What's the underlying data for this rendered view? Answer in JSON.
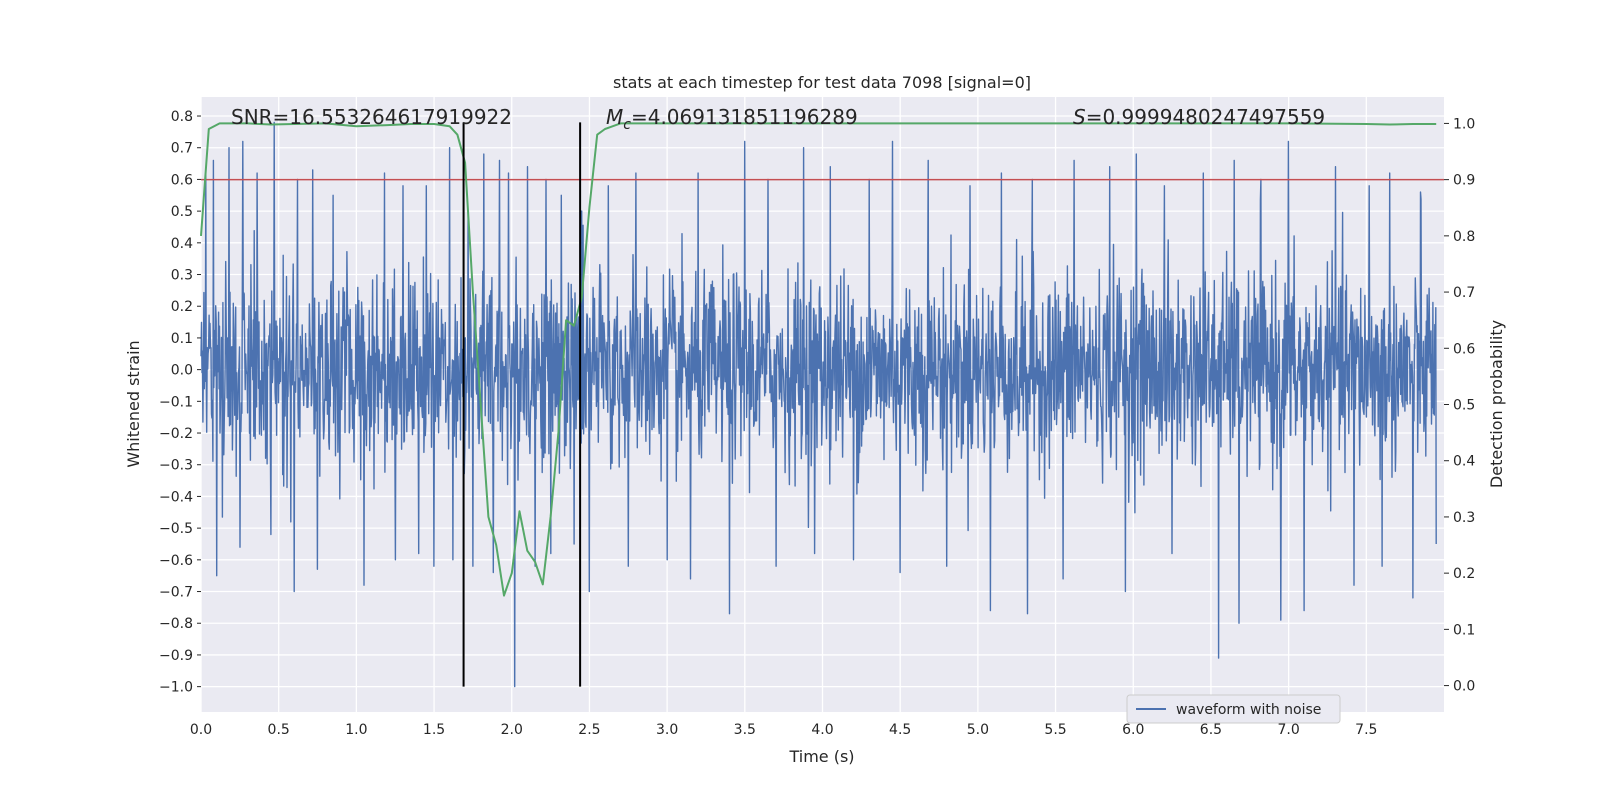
{
  "chart_data": {
    "type": "line",
    "title": "stats at each timestep for test data 7098 [signal=0]",
    "xlabel": "Time (s)",
    "ylabel": "Whitened strain",
    "y2label": "Detection probability",
    "xlim": [
      0.0,
      8.0
    ],
    "ylim": [
      -1.08,
      0.86
    ],
    "y2lim": [
      -0.047,
      1.047
    ],
    "x_ticks": [
      0.0,
      0.5,
      1.0,
      1.5,
      2.0,
      2.5,
      3.0,
      3.5,
      4.0,
      4.5,
      5.0,
      5.5,
      6.0,
      6.5,
      7.0,
      7.5
    ],
    "x_tick_labels": [
      "0.0",
      "0.5",
      "1.0",
      "1.5",
      "2.0",
      "2.5",
      "3.0",
      "3.5",
      "4.0",
      "4.5",
      "5.0",
      "5.5",
      "6.0",
      "6.5",
      "7.0",
      "7.5"
    ],
    "y_ticks": [
      0.8,
      0.7,
      0.6,
      0.5,
      0.4,
      0.3,
      0.2,
      0.1,
      0.0,
      -0.1,
      -0.2,
      -0.3,
      -0.4,
      -0.5,
      -0.6,
      -0.7,
      -0.8,
      -0.9,
      -1.0
    ],
    "y_tick_labels": [
      "0.8",
      "0.7",
      "0.6",
      "0.5",
      "0.4",
      "0.3",
      "0.2",
      "0.1",
      "0.0",
      "−0.1",
      "−0.2",
      "−0.3",
      "−0.4",
      "−0.5",
      "−0.6",
      "−0.7",
      "−0.8",
      "−0.9",
      "−1.0"
    ],
    "y2_ticks": [
      1.0,
      0.9,
      0.8,
      0.7,
      0.6,
      0.5,
      0.4,
      0.3,
      0.2,
      0.1,
      0.0
    ],
    "y2_tick_labels": [
      "1.0",
      "0.9",
      "0.8",
      "0.7",
      "0.6",
      "0.5",
      "0.4",
      "0.3",
      "0.2",
      "0.1",
      "0.0"
    ],
    "annotations": {
      "snr_text": "SNR=16.553264617919922",
      "mc_symbol": "M",
      "mc_subscript": "c",
      "mc_value": "=4.069131851196289",
      "s_symbol": "S",
      "s_value": "=0.9999480247497559"
    },
    "threshold": {
      "value": 0.9,
      "axis": "y2",
      "color": "#c44e52"
    },
    "vertical_lines": [
      {
        "x": 1.69,
        "y_from": -1.0,
        "y_to": 0.78,
        "color": "#000000"
      },
      {
        "x": 2.44,
        "y_from": -1.0,
        "y_to": 0.78,
        "color": "#000000"
      }
    ],
    "series": [
      {
        "name": "waveform with noise",
        "axis": "y",
        "color": "#4c72b0",
        "style": "dense noise, typical envelope ±0.25, peaks up to 0.78 and down to -1.0",
        "peaks": [
          [
            0.03,
            0.62
          ],
          [
            0.08,
            0.66
          ],
          [
            0.18,
            0.7
          ],
          [
            0.27,
            0.72
          ],
          [
            0.36,
            0.62
          ],
          [
            0.47,
            0.78
          ],
          [
            0.62,
            0.6
          ],
          [
            0.72,
            0.63
          ],
          [
            0.85,
            0.55
          ],
          [
            1.05,
            0.6
          ],
          [
            1.18,
            0.62
          ],
          [
            1.3,
            0.58
          ],
          [
            1.45,
            0.58
          ],
          [
            1.6,
            0.7
          ],
          [
            1.72,
            0.5
          ],
          [
            1.82,
            0.68
          ],
          [
            1.92,
            0.66
          ],
          [
            1.98,
            0.62
          ],
          [
            2.1,
            0.64
          ],
          [
            2.22,
            0.6
          ],
          [
            2.32,
            0.55
          ],
          [
            2.45,
            0.5
          ],
          [
            2.62,
            0.58
          ],
          [
            2.8,
            0.62
          ],
          [
            3.0,
            0.68
          ],
          [
            3.2,
            0.62
          ],
          [
            3.5,
            0.72
          ],
          [
            3.65,
            0.6
          ],
          [
            3.88,
            0.7
          ],
          [
            4.05,
            0.64
          ],
          [
            4.3,
            0.6
          ],
          [
            4.45,
            0.72
          ],
          [
            4.68,
            0.66
          ],
          [
            4.95,
            0.58
          ],
          [
            5.15,
            0.62
          ],
          [
            5.35,
            0.6
          ],
          [
            5.62,
            0.66
          ],
          [
            5.85,
            0.64
          ],
          [
            6.02,
            0.68
          ],
          [
            6.2,
            0.58
          ],
          [
            6.45,
            0.62
          ],
          [
            6.65,
            0.66
          ],
          [
            6.82,
            0.6
          ],
          [
            7.0,
            0.72
          ],
          [
            7.1,
            0.68
          ],
          [
            7.3,
            0.64
          ],
          [
            7.52,
            0.58
          ],
          [
            7.65,
            0.62
          ],
          [
            7.85,
            0.56
          ],
          [
            0.1,
            -0.65
          ],
          [
            0.25,
            -0.56
          ],
          [
            0.45,
            -0.52
          ],
          [
            0.6,
            -0.7
          ],
          [
            0.75,
            -0.63
          ],
          [
            1.05,
            -0.68
          ],
          [
            1.25,
            -0.6
          ],
          [
            1.4,
            -0.58
          ],
          [
            1.5,
            -0.62
          ],
          [
            1.62,
            -0.6
          ],
          [
            1.75,
            -0.62
          ],
          [
            1.88,
            -0.64
          ],
          [
            2.02,
            -1.0
          ],
          [
            2.15,
            -0.62
          ],
          [
            2.25,
            -0.58
          ],
          [
            2.4,
            -0.55
          ],
          [
            2.5,
            -0.7
          ],
          [
            2.75,
            -0.62
          ],
          [
            3.0,
            -0.6
          ],
          [
            3.15,
            -0.66
          ],
          [
            3.4,
            -0.77
          ],
          [
            3.7,
            -0.62
          ],
          [
            3.95,
            -0.58
          ],
          [
            4.2,
            -0.6
          ],
          [
            4.5,
            -0.64
          ],
          [
            4.8,
            -0.62
          ],
          [
            5.08,
            -0.76
          ],
          [
            5.32,
            -0.77
          ],
          [
            5.55,
            -0.66
          ],
          [
            5.95,
            -0.7
          ],
          [
            6.25,
            -0.58
          ],
          [
            6.55,
            -0.91
          ],
          [
            6.68,
            -0.8
          ],
          [
            6.95,
            -0.79
          ],
          [
            7.1,
            -0.76
          ],
          [
            7.42,
            -0.68
          ],
          [
            7.6,
            -0.62
          ],
          [
            7.8,
            -0.72
          ],
          [
            7.95,
            -0.55
          ]
        ]
      },
      {
        "name": "detection probability",
        "axis": "y2",
        "color": "#55a868",
        "x": [
          0.0,
          0.05,
          0.12,
          0.2,
          0.3,
          0.45,
          0.6,
          0.8,
          1.0,
          1.2,
          1.35,
          1.5,
          1.6,
          1.65,
          1.7,
          1.75,
          1.8,
          1.85,
          1.9,
          1.95,
          2.0,
          2.05,
          2.1,
          2.15,
          2.2,
          2.25,
          2.3,
          2.35,
          2.4,
          2.45,
          2.5,
          2.55,
          2.6,
          2.7,
          2.8,
          3.0,
          3.5,
          4.0,
          4.5,
          5.0,
          5.5,
          6.0,
          6.5,
          7.0,
          7.5,
          7.65,
          7.8,
          7.95
        ],
        "values": [
          0.8,
          0.99,
          1.0,
          1.0,
          1.0,
          0.998,
          0.999,
          1.0,
          0.995,
          0.997,
          0.999,
          0.999,
          0.995,
          0.98,
          0.93,
          0.7,
          0.5,
          0.3,
          0.25,
          0.16,
          0.2,
          0.31,
          0.24,
          0.22,
          0.18,
          0.3,
          0.45,
          0.65,
          0.64,
          0.69,
          0.85,
          0.98,
          0.99,
          1.0,
          1.0,
          1.0,
          1.0,
          1.0,
          1.0,
          1.0,
          1.0,
          1.0,
          1.0,
          1.0,
          0.999,
          0.998,
          0.999,
          0.999
        ]
      }
    ],
    "legend": {
      "position": "bottom-right",
      "entries": [
        "waveform with noise"
      ]
    },
    "grid": true,
    "colors": {
      "background": "#eaeaf2",
      "grid": "#ffffff",
      "text": "#262626"
    }
  }
}
